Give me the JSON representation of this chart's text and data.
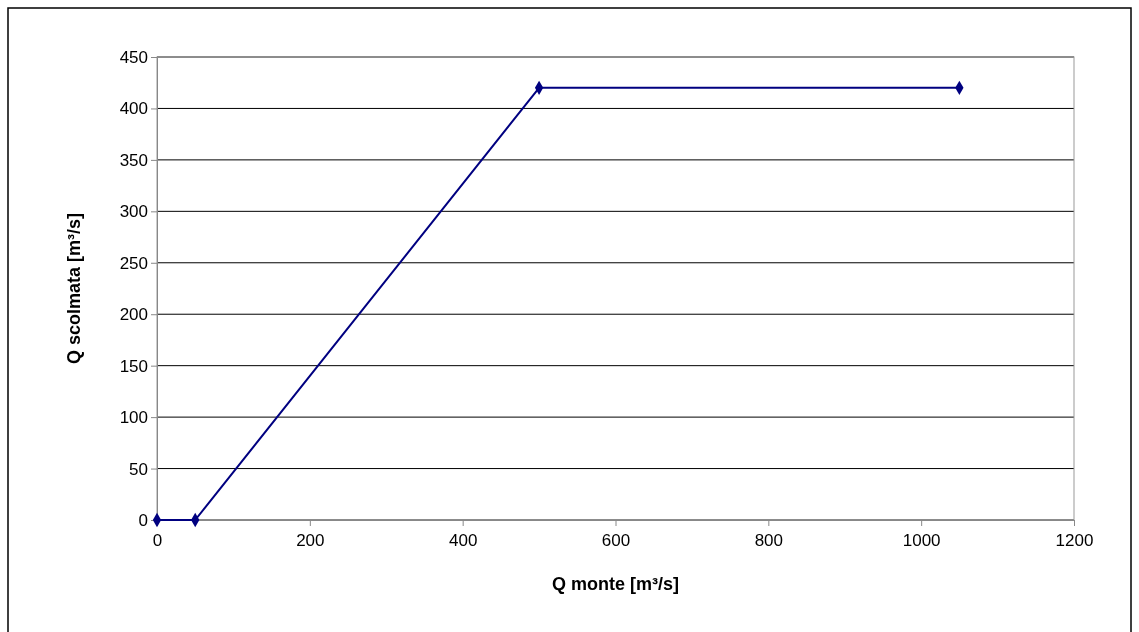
{
  "chart_data": {
    "type": "line",
    "xlabel": "Q monte [m³/s]",
    "ylabel": "Q scolmata [m³/s]",
    "x": [
      0,
      50,
      500,
      1050
    ],
    "series": [
      {
        "color": "#000080",
        "values": [
          0,
          0,
          420,
          420
        ]
      }
    ],
    "xlim": [
      0,
      1200
    ],
    "xticks": [
      0,
      200,
      400,
      600,
      800,
      1000,
      1200
    ],
    "ylim": [
      0,
      450
    ],
    "yticks": [
      0,
      50,
      100,
      150,
      200,
      250,
      300,
      350,
      400,
      450
    ],
    "grid": "y",
    "marker": "diamond",
    "line_style": "solid"
  }
}
